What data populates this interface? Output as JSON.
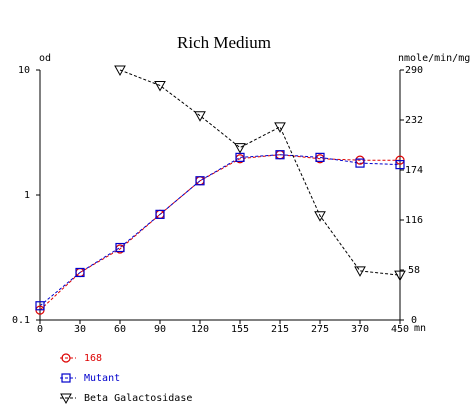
{
  "chart_data": {
    "type": "line",
    "title": "Rich Medium",
    "x_unit": "mn",
    "x": [
      0,
      30,
      60,
      90,
      120,
      155,
      215,
      275,
      370,
      450
    ],
    "xlim": [
      0,
      450
    ],
    "y_left": {
      "label": "od",
      "scale": "log",
      "ylim": [
        0.1,
        10
      ],
      "ticks": [
        "0.1",
        "1",
        "10"
      ]
    },
    "y_right": {
      "label": "nmole/min/mg",
      "scale": "linear",
      "ylim": [
        0,
        290
      ],
      "ticks": [
        "0",
        "58",
        "116",
        "174",
        "232",
        "290"
      ]
    },
    "series": [
      {
        "name": "168",
        "axis": "left",
        "marker": "circle",
        "color": "#dd0000",
        "points": [
          [
            0,
            0.12
          ],
          [
            30,
            0.24
          ],
          [
            60,
            0.37
          ],
          [
            90,
            0.7
          ],
          [
            120,
            1.3
          ],
          [
            155,
            1.95
          ],
          [
            215,
            2.1
          ],
          [
            275,
            1.95
          ],
          [
            370,
            1.9
          ],
          [
            450,
            1.9
          ]
        ]
      },
      {
        "name": "Mutant",
        "axis": "left",
        "marker": "square",
        "color": "#0000cc",
        "points": [
          [
            0,
            0.13
          ],
          [
            30,
            0.24
          ],
          [
            60,
            0.38
          ],
          [
            90,
            0.7
          ],
          [
            120,
            1.3
          ],
          [
            155,
            2.0
          ],
          [
            215,
            2.1
          ],
          [
            275,
            2.0
          ],
          [
            370,
            1.8
          ],
          [
            450,
            1.75
          ]
        ]
      },
      {
        "name": "Beta Galactosidase",
        "axis": "right",
        "marker": "triangle-down",
        "color": "#000000",
        "points": [
          [
            60,
            290
          ],
          [
            90,
            272
          ],
          [
            120,
            237
          ],
          [
            155,
            200
          ],
          [
            215,
            224
          ],
          [
            275,
            121
          ],
          [
            370,
            57
          ],
          [
            450,
            52
          ]
        ]
      }
    ]
  }
}
